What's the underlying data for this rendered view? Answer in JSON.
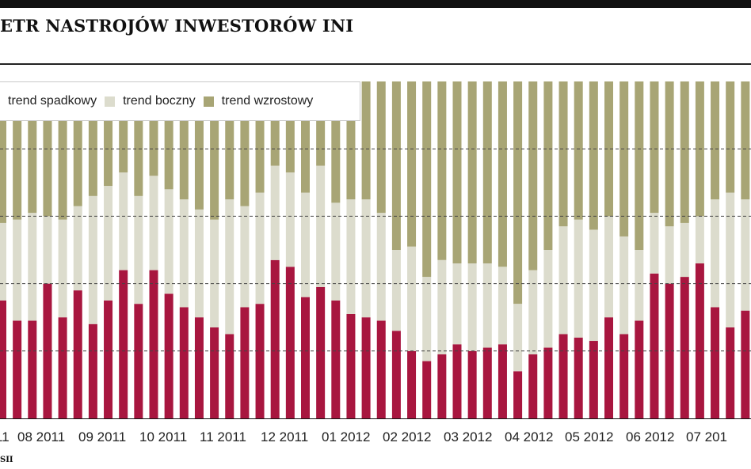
{
  "title": "ETR NASTROJÓW INWESTORÓW INI",
  "source": "SII",
  "colors": {
    "spadkowy": "#a8163f",
    "boczny": "#dcdccd",
    "wzrostowy": "#a8a575",
    "grid": "#444444",
    "axis": "#111111"
  },
  "chart_data": {
    "type": "bar",
    "stacked": true,
    "percent": true,
    "ylim": [
      0,
      100
    ],
    "grid": true,
    "legend_position": "top-left",
    "series": [
      {
        "name": "trend spadkowy",
        "values": [
          35,
          29,
          29,
          40,
          30,
          38,
          28,
          35,
          44,
          34,
          44,
          37,
          33,
          30,
          27,
          25,
          33,
          34,
          47,
          45,
          36,
          39,
          35,
          31,
          30,
          29,
          26,
          20,
          17,
          19,
          22,
          20,
          21,
          22,
          14,
          19,
          21,
          25,
          24,
          23,
          30,
          25,
          29,
          43,
          40,
          42,
          46,
          33,
          27,
          32,
          36
        ]
      },
      {
        "name": "trend boczny",
        "values": [
          23,
          30,
          32,
          20,
          29,
          25,
          38,
          34,
          29,
          32,
          28,
          31,
          32,
          32,
          32,
          40,
          30,
          33,
          28,
          28,
          31,
          36,
          29,
          34,
          35,
          32,
          24,
          31,
          25,
          28,
          24,
          26,
          25,
          23,
          20,
          25,
          29,
          32,
          35,
          33,
          30,
          29,
          21,
          18,
          17,
          16,
          14,
          32,
          40,
          33,
          27
        ]
      },
      {
        "name": "trend wzrostowy",
        "values": [
          42,
          41,
          39,
          40,
          41,
          37,
          34,
          31,
          27,
          34,
          28,
          32,
          35,
          38,
          41,
          35,
          37,
          33,
          25,
          27,
          33,
          25,
          36,
          35,
          35,
          39,
          50,
          49,
          58,
          53,
          54,
          54,
          54,
          55,
          66,
          56,
          50,
          43,
          41,
          44,
          40,
          46,
          50,
          39,
          43,
          42,
          40,
          35,
          33,
          35,
          37
        ]
      }
    ],
    "x_tick_labels": [
      "11",
      "08 2011",
      "09 2011",
      "10 2011",
      "11 2011",
      "12 2011",
      "01 2012",
      "02 2012",
      "03 2012",
      "04 2012",
      "05 2012",
      "06 2012",
      "07 201"
    ]
  }
}
